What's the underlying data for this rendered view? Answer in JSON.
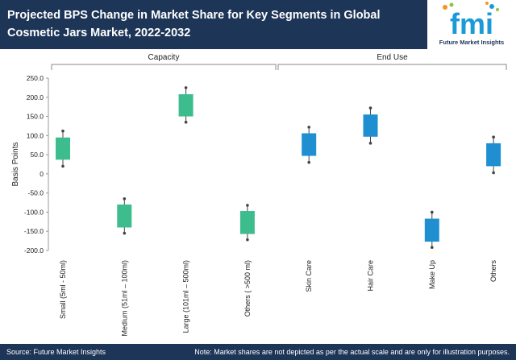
{
  "header": {
    "title": "Projected BPS Change in Market Share for Key Segments in Global Cosmetic Jars Market, 2022-2032",
    "logo_mark": "fmi",
    "logo_text": "Future Market Insights"
  },
  "footer": {
    "source": "Source: Future Market Insights",
    "note": "Note: Market shares are not depicted as per the actual scale and are only for illustration purposes."
  },
  "colors": {
    "header_bg": "#1d3557",
    "capacity": "#3dbd8d",
    "end_use": "#1f8fd1",
    "whisker": "#444444",
    "logo_green": "#8cc63f",
    "logo_blue": "#1a9bd7",
    "logo_orange": "#f7941d"
  },
  "chart_data": {
    "type": "candlestick",
    "ylabel": "Basis Points",
    "ylim": [
      -200,
      250
    ],
    "yticks": [
      250,
      200,
      150,
      100,
      50,
      0,
      -50,
      -100,
      -150,
      -200
    ],
    "ytick_labels": [
      "250.0",
      "200.0",
      "150.0",
      "100.0",
      "50.0",
      "0",
      "-50.0",
      "-100.0",
      "-150.0",
      "-200.0"
    ],
    "groups": [
      {
        "name": "Capacity",
        "start": 0,
        "end": 3
      },
      {
        "name": "End Use",
        "start": 4,
        "end": 7
      }
    ],
    "categories": [
      "Small (5ml - 50ml)",
      "Medium (51ml – 100ml)",
      "Large (101ml – 500ml)",
      "Others ( >500 ml)",
      "Skin Care",
      "Hair Care",
      "Make Up",
      "Others"
    ],
    "series": [
      {
        "name": "Small (5ml - 50ml)",
        "group": "Capacity",
        "low": 20,
        "box_low": 37,
        "box_high": 95,
        "high": 112
      },
      {
        "name": "Medium (51ml – 100ml)",
        "group": "Capacity",
        "low": -155,
        "box_low": -140,
        "box_high": -80,
        "high": -65
      },
      {
        "name": "Large (101ml – 500ml)",
        "group": "Capacity",
        "low": 135,
        "box_low": 150,
        "box_high": 208,
        "high": 225
      },
      {
        "name": "Others ( >500 ml)",
        "group": "Capacity",
        "low": -172,
        "box_low": -157,
        "box_high": -97,
        "high": -82
      },
      {
        "name": "Skin Care",
        "group": "End Use",
        "low": 30,
        "box_low": 47,
        "box_high": 106,
        "high": 122
      },
      {
        "name": "Hair Care",
        "group": "End Use",
        "low": 80,
        "box_low": 97,
        "box_high": 155,
        "high": 172
      },
      {
        "name": "Make Up",
        "group": "End Use",
        "low": -192,
        "box_low": -177,
        "box_high": -117,
        "high": -100
      },
      {
        "name": "Others",
        "group": "End Use",
        "low": 3,
        "box_low": 20,
        "box_high": 80,
        "high": 96
      }
    ]
  }
}
